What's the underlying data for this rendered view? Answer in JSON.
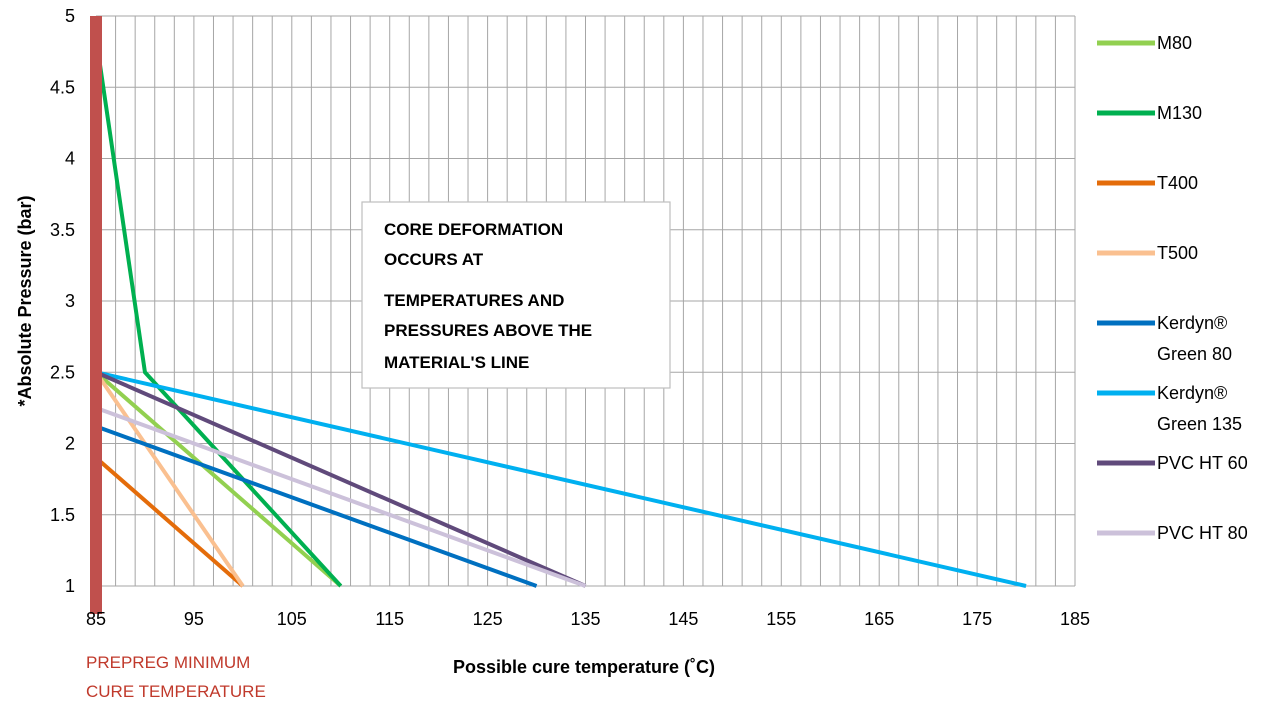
{
  "chart_data": {
    "type": "line",
    "title": "",
    "xlabel": "Possible cure temperature (˚C)",
    "ylabel": "*Absolute Pressure (bar)",
    "xlim": [
      85,
      185
    ],
    "ylim": [
      1,
      5
    ],
    "x_ticks": [
      85,
      95,
      105,
      115,
      125,
      135,
      145,
      155,
      165,
      175,
      185
    ],
    "y_ticks": [
      "1",
      "1.5",
      "2",
      "2.5",
      "3",
      "3.5",
      "4",
      "4.5",
      "5"
    ],
    "grid": true,
    "legend_position": "right",
    "series": [
      {
        "name": "M80",
        "color": "#92d050",
        "points": [
          [
            85,
            2.5
          ],
          [
            110,
            1
          ]
        ]
      },
      {
        "name": "M130",
        "color": "#00b050",
        "points": [
          [
            85,
            4.85
          ],
          [
            90,
            2.5
          ],
          [
            110,
            1
          ]
        ]
      },
      {
        "name": "T400",
        "color": "#e46c0a",
        "points": [
          [
            85,
            1.9
          ],
          [
            100,
            1
          ]
        ]
      },
      {
        "name": "T500",
        "color": "#fac090",
        "points": [
          [
            85,
            2.5
          ],
          [
            100,
            1
          ]
        ]
      },
      {
        "name": "Kerdyn® Green 80",
        "label_lines": [
          "Kerdyn®",
          "Green 80"
        ],
        "color": "#0070c0",
        "points": [
          [
            85,
            2.12
          ],
          [
            130,
            1
          ]
        ]
      },
      {
        "name": "Kerdyn® Green 135",
        "label_lines": [
          "Kerdyn®",
          "Green 135"
        ],
        "color": "#00b0f0",
        "points": [
          [
            85,
            2.5
          ],
          [
            180,
            1
          ]
        ]
      },
      {
        "name": "PVC HT 60",
        "color": "#604a7b",
        "points": [
          [
            85,
            2.5
          ],
          [
            135,
            1
          ]
        ]
      },
      {
        "name": "PVC HT 80",
        "color": "#ccc1da",
        "points": [
          [
            85,
            2.25
          ],
          [
            135,
            1
          ]
        ]
      }
    ],
    "vertical_marker": {
      "x": 85,
      "color": "#c0504d",
      "label_lines": [
        "PREPREG MINIMUM",
        "CURE TEMPERATURE"
      ]
    },
    "annotation_lines": [
      "CORE DEFORMATION",
      "OCCURS AT",
      "TEMPERATURES AND",
      "PRESSURES ABOVE THE",
      "MATERIAL'S LINE"
    ]
  }
}
